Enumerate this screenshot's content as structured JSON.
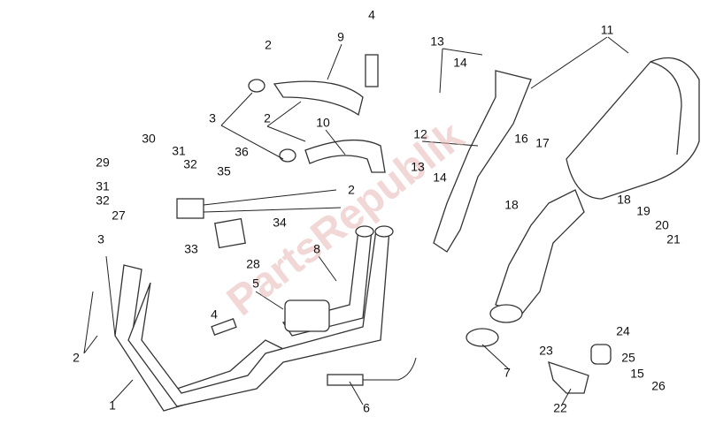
{
  "watermark": "PartsRepublik",
  "labels": [
    "4",
    "2",
    "9",
    "11",
    "13",
    "14",
    "3",
    "2",
    "10",
    "12",
    "16",
    "17",
    "30",
    "31",
    "29",
    "32",
    "36",
    "35",
    "13",
    "14",
    "18",
    "31",
    "32",
    "27",
    "2",
    "34",
    "18",
    "19",
    "20",
    "21",
    "3",
    "33",
    "8",
    "28",
    "5",
    "4",
    "24",
    "23",
    "25",
    "15",
    "26",
    "2",
    "7",
    "1",
    "6",
    "22"
  ]
}
